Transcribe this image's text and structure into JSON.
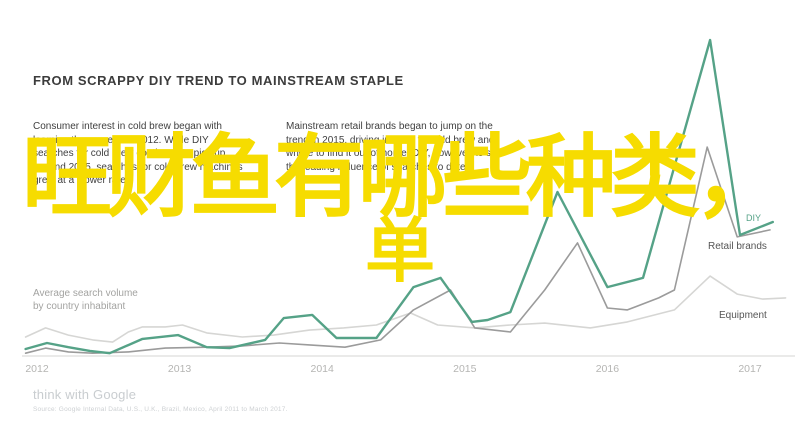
{
  "page": {
    "title": "FROM SCRAPPY DIY TREND TO MAINSTREAM STAPLE",
    "intro_left": "Consumer interest in cold brew began with learning the process in 2012. While DIY searches for cold brew continued to pick up beyond 2015, searches for cold brew machines grew at a slower rate.",
    "intro_right": "Mainstream retail brands began to jump on the trend in 2015, driving interest for cold brew and where to find it out of home. DIY, however, is still the leading influence of searches to date.",
    "axis_note_line1": "Average search volume",
    "axis_note_line2": "by country inhabitant",
    "footer_logo": "think with Google",
    "source": "Source: Google Internal Data, U.S., U.K., Brazil, Mexico, April 2011 to March 2017."
  },
  "overlay": {
    "line1": "旺财鱼有哪些种类，",
    "line2": "单",
    "color": "#F6DC00"
  },
  "chart_data": {
    "type": "line",
    "title": "FROM SCRAPPY DIY TREND TO MAINSTREAM STAPLE",
    "ylabel": "Average search volume by country inhabitant",
    "xlabel": "",
    "x_ticks": [
      2012,
      2013,
      2014,
      2015,
      2016,
      2017
    ],
    "x_range": [
      2011.9,
      2017.3
    ],
    "y_range": [
      0,
      100
    ],
    "grid": false,
    "legend_position": "line-end-labels",
    "axis_color": "#e4e4e2",
    "series": [
      {
        "name": "DIY",
        "color": "#55a287",
        "label_color": "#55a287",
        "stroke_width": 2.4,
        "points": [
          [
            2011.92,
            2.2
          ],
          [
            2012.07,
            4.1
          ],
          [
            2012.22,
            2.8
          ],
          [
            2012.37,
            1.6
          ],
          [
            2012.51,
            0.9
          ],
          [
            2012.74,
            5.4
          ],
          [
            2012.99,
            6.6
          ],
          [
            2013.19,
            2.8
          ],
          [
            2013.35,
            2.5
          ],
          [
            2013.6,
            5.1
          ],
          [
            2013.73,
            12.0
          ],
          [
            2013.93,
            13.0
          ],
          [
            2014.1,
            5.7
          ],
          [
            2014.38,
            5.7
          ],
          [
            2014.64,
            21.8
          ],
          [
            2014.83,
            24.7
          ],
          [
            2015.05,
            10.8
          ],
          [
            2015.16,
            11.4
          ],
          [
            2015.32,
            13.9
          ],
          [
            2015.65,
            51.9
          ],
          [
            2016.0,
            21.8
          ],
          [
            2016.25,
            24.7
          ],
          [
            2016.72,
            100.0
          ],
          [
            2016.93,
            38.3
          ],
          [
            2017.16,
            42.4
          ]
        ]
      },
      {
        "name": "Retail brands",
        "color": "#9b9b9b",
        "label_color": "#555555",
        "stroke_width": 1.6,
        "points": [
          [
            2011.92,
            0.9
          ],
          [
            2012.06,
            2.5
          ],
          [
            2012.22,
            1.3
          ],
          [
            2012.39,
            0.9
          ],
          [
            2012.64,
            1.3
          ],
          [
            2012.9,
            2.5
          ],
          [
            2013.19,
            2.8
          ],
          [
            2013.44,
            3.2
          ],
          [
            2013.7,
            4.1
          ],
          [
            2013.91,
            3.5
          ],
          [
            2014.16,
            2.8
          ],
          [
            2014.41,
            5.1
          ],
          [
            2014.64,
            14.6
          ],
          [
            2014.9,
            20.9
          ],
          [
            2015.07,
            8.9
          ],
          [
            2015.32,
            7.6
          ],
          [
            2015.56,
            20.9
          ],
          [
            2015.79,
            35.8
          ],
          [
            2016.0,
            15.2
          ],
          [
            2016.14,
            14.6
          ],
          [
            2016.36,
            18.4
          ],
          [
            2016.47,
            20.9
          ],
          [
            2016.7,
            66.1
          ],
          [
            2016.91,
            37.7
          ],
          [
            2017.14,
            39.9
          ]
        ]
      },
      {
        "name": "Equipment",
        "color": "#d6d6d4",
        "label_color": "#555555",
        "stroke_width": 1.6,
        "points": [
          [
            2011.92,
            6.0
          ],
          [
            2012.06,
            8.9
          ],
          [
            2012.22,
            6.6
          ],
          [
            2012.39,
            5.1
          ],
          [
            2012.53,
            4.4
          ],
          [
            2012.64,
            7.6
          ],
          [
            2012.74,
            9.2
          ],
          [
            2012.9,
            9.2
          ],
          [
            2013.02,
            9.8
          ],
          [
            2013.19,
            7.3
          ],
          [
            2013.44,
            6.0
          ],
          [
            2013.66,
            6.6
          ],
          [
            2013.91,
            8.2
          ],
          [
            2014.15,
            8.9
          ],
          [
            2014.38,
            9.8
          ],
          [
            2014.62,
            13.6
          ],
          [
            2014.81,
            9.8
          ],
          [
            2015.07,
            8.9
          ],
          [
            2015.32,
            9.8
          ],
          [
            2015.56,
            10.4
          ],
          [
            2015.88,
            8.9
          ],
          [
            2016.14,
            10.8
          ],
          [
            2016.47,
            14.6
          ],
          [
            2016.72,
            25.3
          ],
          [
            2016.91,
            19.6
          ],
          [
            2017.09,
            18.0
          ],
          [
            2017.25,
            18.4
          ]
        ]
      }
    ]
  }
}
